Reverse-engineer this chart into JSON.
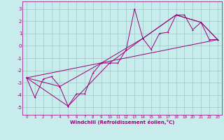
{
  "xlabel": "Windchill (Refroidissement éolien,°C)",
  "background_color": "#c8ecec",
  "grid_color": "#a0cece",
  "line_color": "#990077",
  "xlim": [
    -0.5,
    23.5
  ],
  "ylim": [
    -5.6,
    3.6
  ],
  "yticks": [
    -5,
    -4,
    -3,
    -2,
    -1,
    0,
    1,
    2,
    3
  ],
  "xticks": [
    0,
    1,
    2,
    3,
    4,
    5,
    6,
    7,
    8,
    9,
    10,
    11,
    12,
    13,
    14,
    15,
    16,
    17,
    18,
    19,
    20,
    21,
    22,
    23
  ],
  "series1_x": [
    0,
    1,
    2,
    3,
    4,
    5,
    6,
    7,
    8,
    9,
    10,
    11,
    12,
    13,
    14,
    15,
    16,
    17,
    18,
    19,
    20,
    21,
    22,
    23
  ],
  "series1_y": [
    -2.6,
    -4.2,
    -2.7,
    -2.5,
    -3.3,
    -4.9,
    -3.9,
    -3.9,
    -2.2,
    -1.4,
    -1.4,
    -1.4,
    -0.3,
    3.0,
    0.6,
    -0.3,
    1.0,
    1.1,
    2.5,
    2.5,
    1.3,
    1.9,
    0.5,
    0.5
  ],
  "series2_x": [
    0,
    5,
    10,
    14,
    18,
    21,
    23
  ],
  "series2_y": [
    -2.6,
    -4.9,
    -1.4,
    0.6,
    2.5,
    1.9,
    0.5
  ],
  "series3_x": [
    0,
    23
  ],
  "series3_y": [
    -2.6,
    0.5
  ],
  "series4_x": [
    0,
    4,
    9,
    14,
    18,
    21,
    23
  ],
  "series4_y": [
    -2.6,
    -3.3,
    -1.4,
    0.6,
    2.5,
    1.9,
    0.5
  ]
}
